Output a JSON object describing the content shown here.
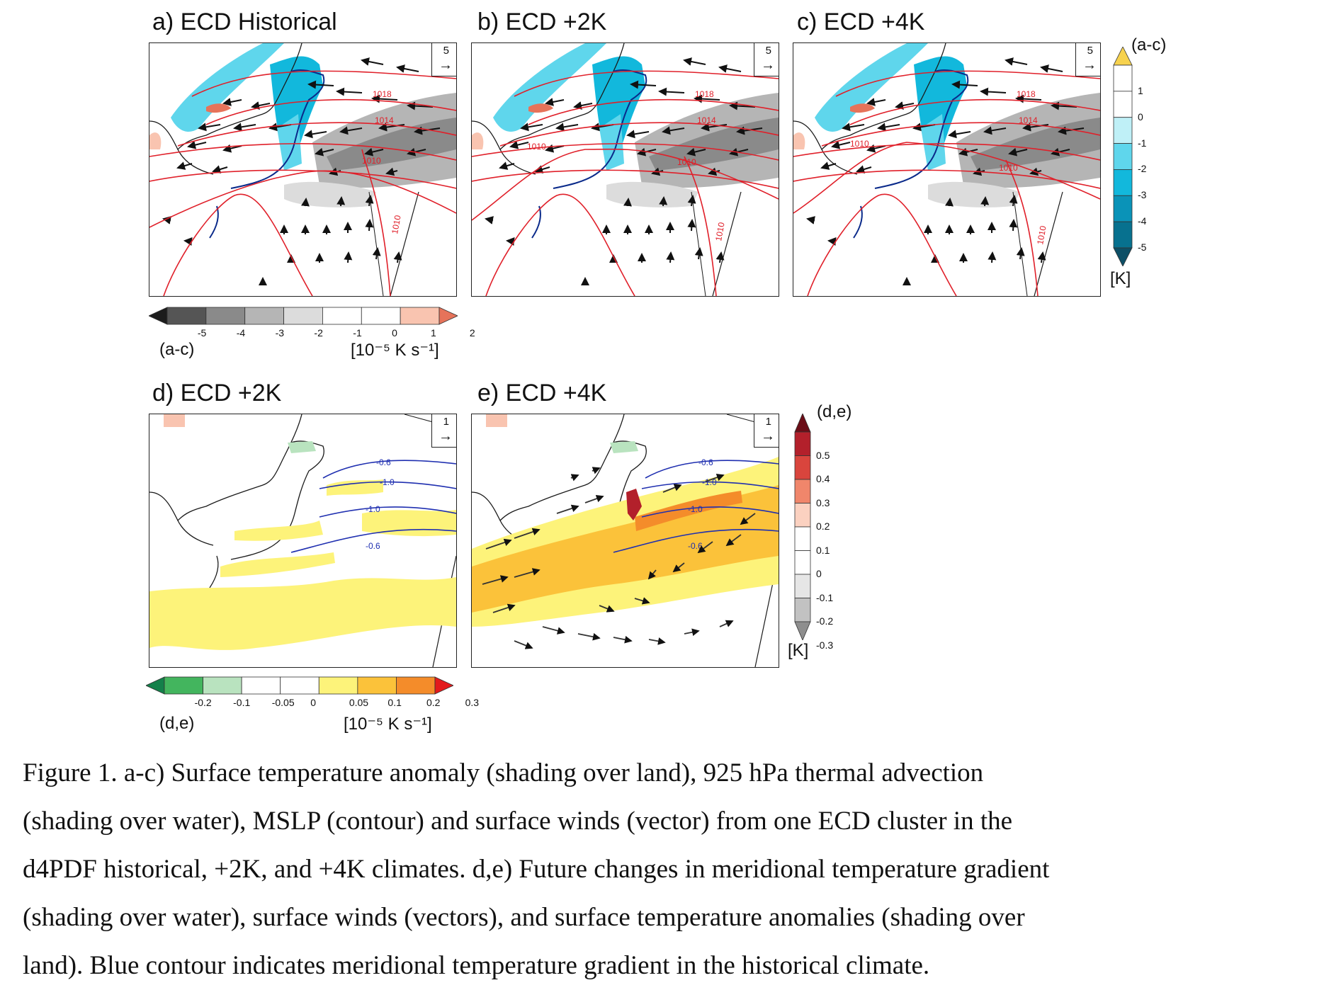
{
  "panels": {
    "a": {
      "title": "a) ECD Historical",
      "ref": "5",
      "isobars": [
        "1018",
        "1014",
        "1010",
        "1010"
      ]
    },
    "b": {
      "title": "b) ECD +2K",
      "ref": "5",
      "isobars": [
        "1018",
        "1014",
        "1010",
        "1010",
        "1010"
      ]
    },
    "c": {
      "title": "c) ECD +4K",
      "ref": "5",
      "isobars": [
        "1018",
        "1014",
        "1010",
        "1010",
        "1010"
      ]
    },
    "d": {
      "title": "d) ECD +2K",
      "ref": "1",
      "contours": [
        "-0.6",
        "-1.0",
        "-1.0",
        "-0.6"
      ]
    },
    "e": {
      "title": "e) ECD +4K",
      "ref": "1",
      "contours": [
        "-0.6",
        "-1.0",
        "-1.0",
        "-0.6"
      ]
    }
  },
  "colorbars": {
    "advection_ac": {
      "ticks": [
        "-5",
        "-4",
        "-3",
        "-2",
        "-1",
        "0",
        "1",
        "2"
      ],
      "name": "(a-c)",
      "unit": "[10⁻⁵ K s⁻¹]",
      "colors": [
        "#1c1c1c",
        "#555555",
        "#8a8a8a",
        "#b5b5b5",
        "#dcdcdc",
        "#ffffff",
        "#ffffff",
        "#f9c4b0",
        "#e6735a"
      ]
    },
    "temp_ac": {
      "name": "(a-c)",
      "ticks": [
        "1",
        "0",
        "-1",
        "-2",
        "-3",
        "-4",
        "-5"
      ],
      "unit": "[K]",
      "colors": [
        "#f7d24e",
        "#ffffff",
        "#ffffff",
        "#bff0f7",
        "#5fd6ec",
        "#12b8dc",
        "#0a93b8",
        "#07718f",
        "#0d4f66"
      ]
    },
    "gradient_de": {
      "ticks": [
        "-0.2",
        "-0.1",
        "-0.05",
        "0",
        "0.05",
        "0.1",
        "0.2",
        "0.3"
      ],
      "name": "(d,e)",
      "unit": "[10⁻⁵ K s⁻¹]",
      "colors": [
        "#14804a",
        "#43b55e",
        "#b9e3bf",
        "#ffffff",
        "#ffffff",
        "#fdf37a",
        "#fbc23a",
        "#f48c2a",
        "#e31a1c"
      ]
    },
    "temp_de": {
      "name": "(d,e)",
      "ticks": [
        "0.5",
        "0.4",
        "0.3",
        "0.2",
        "0.1",
        "0",
        "-0.1",
        "-0.2",
        "-0.3"
      ],
      "unit": "[K]",
      "colors": [
        "#6b0d17",
        "#b3202b",
        "#d9453d",
        "#f0866b",
        "#fbd1c0",
        "#ffffff",
        "#ffffff",
        "#e6e6e6",
        "#c2c2c2",
        "#8e8e8e"
      ]
    }
  },
  "caption": {
    "lines": [
      "Figure 1. a-c) Surface temperature anomaly (shading over land), 925 hPa thermal advection",
      "(shading over water), MSLP (contour) and surface winds (vector) from one ECD cluster in the",
      "d4PDF historical, +2K, and +4K climates. d,e) Future changes in meridional temperature gradient",
      "(shading over water), surface winds (vectors), and surface temperature anomalies (shading over",
      "land). Blue contour indicates meridional temperature gradient in the historical climate."
    ]
  },
  "colors": {
    "isobar": "#e0202a",
    "gradient_contour": "#1f2fb0",
    "coast": "#1a1a1a",
    "japan_coast_ac": "#0a2a8a"
  }
}
